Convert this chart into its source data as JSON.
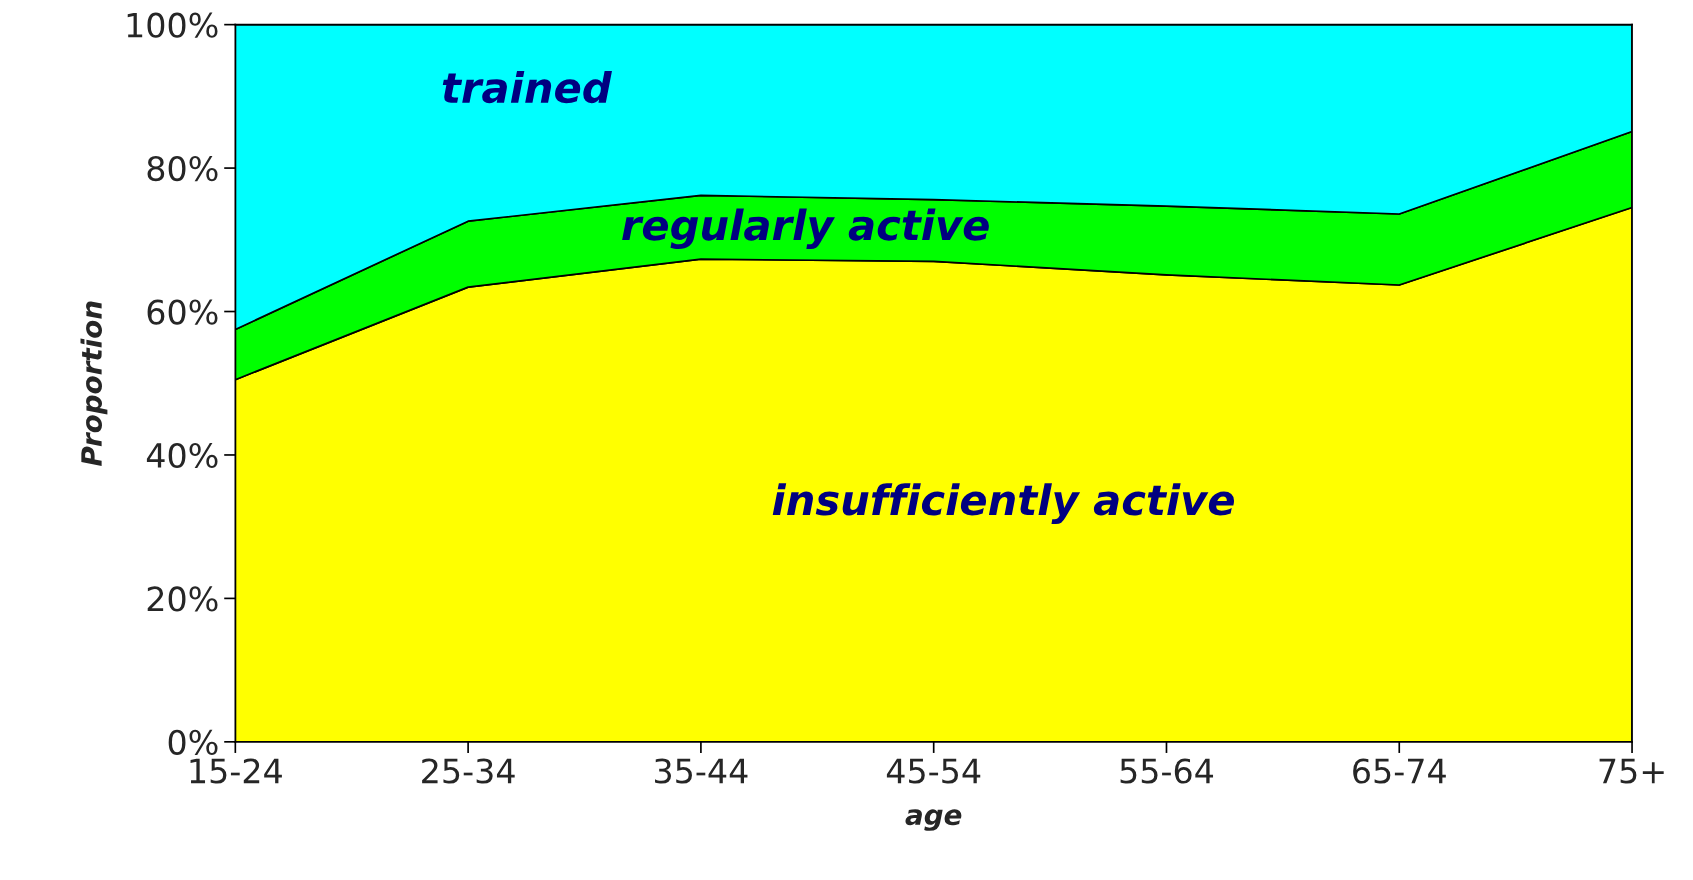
{
  "chart_data": {
    "type": "area",
    "stacked": true,
    "xlabel": "age",
    "ylabel": "Proportion",
    "categories": [
      "15-24",
      "25-34",
      "35-44",
      "45-54",
      "55-64",
      "65-74",
      "75+"
    ],
    "series": [
      {
        "name": "insufficiently active",
        "color": "#ffff00",
        "values": [
          50.5,
          63.4,
          67.3,
          67.0,
          65.1,
          63.7,
          74.5
        ]
      },
      {
        "name": "regularly active",
        "color": "#00ff00",
        "values": [
          7.0,
          9.2,
          8.9,
          8.6,
          9.6,
          9.9,
          10.6
        ]
      },
      {
        "name": "trained",
        "color": "#00ffff",
        "values": [
          42.5,
          27.4,
          23.8,
          24.4,
          25.3,
          26.4,
          14.9
        ]
      }
    ],
    "ylim": [
      0,
      100
    ],
    "yticks": [
      {
        "value": 0,
        "label": "0%"
      },
      {
        "value": 20,
        "label": "20%"
      },
      {
        "value": 40,
        "label": "40%"
      },
      {
        "value": 60,
        "label": "60%"
      },
      {
        "value": 80,
        "label": "80%"
      },
      {
        "value": 100,
        "label": "100%"
      }
    ]
  }
}
